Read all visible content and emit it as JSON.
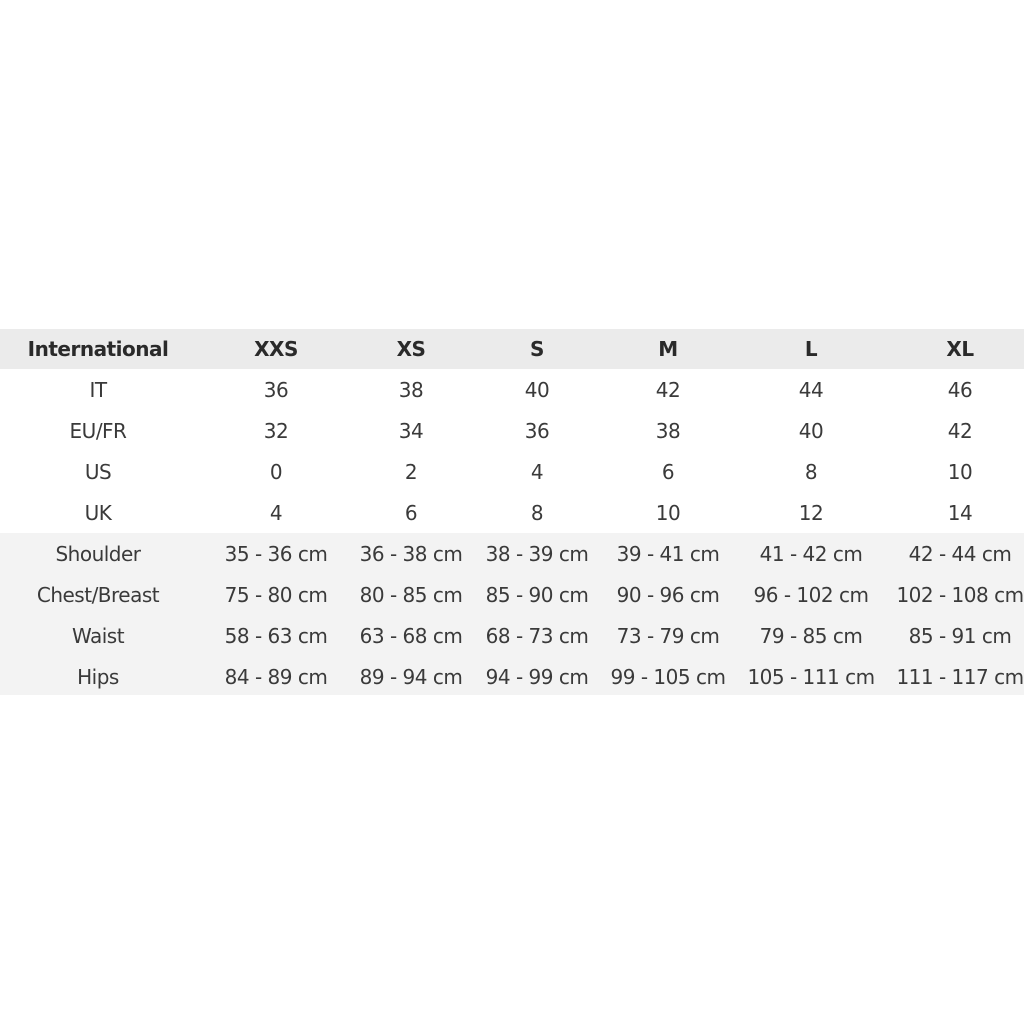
{
  "header": {
    "label": "International",
    "sizes": [
      "XXS",
      "XS",
      "S",
      "M",
      "L",
      "XL"
    ]
  },
  "rows": [
    {
      "label": "IT",
      "values": [
        "36",
        "38",
        "40",
        "42",
        "44",
        "46"
      ]
    },
    {
      "label": "EU/FR",
      "values": [
        "32",
        "34",
        "36",
        "38",
        "40",
        "42"
      ]
    },
    {
      "label": "US",
      "values": [
        "0",
        "2",
        "4",
        "6",
        "8",
        "10"
      ]
    },
    {
      "label": "UK",
      "values": [
        "4",
        "6",
        "8",
        "10",
        "12",
        "14"
      ]
    },
    {
      "label": "Shoulder",
      "values": [
        "35 - 36 cm",
        "36 - 38 cm",
        "38 - 39 cm",
        "39 - 41 cm",
        "41 - 42 cm",
        "42 - 44 cm"
      ]
    },
    {
      "label": "Chest/Breast",
      "values": [
        "75 - 80 cm",
        "80 - 85 cm",
        "85 - 90 cm",
        "90 - 96 cm",
        "96 - 102 cm",
        "102 - 108 cm"
      ]
    },
    {
      "label": "Waist",
      "values": [
        "58 - 63 cm",
        "63 - 68 cm",
        "68 - 73 cm",
        "73 - 79 cm",
        "79 - 85 cm",
        "85 - 91 cm"
      ]
    },
    {
      "label": "Hips",
      "values": [
        "84 - 89 cm",
        "89 - 94 cm",
        "94 - 99 cm",
        "99 - 105 cm",
        "105 - 111 cm",
        "111 - 117 cm"
      ]
    }
  ],
  "colors": {
    "header_bg": "#ebebeb",
    "measurement_bg": "#f3f3f3",
    "text": "#3a3a3a"
  }
}
